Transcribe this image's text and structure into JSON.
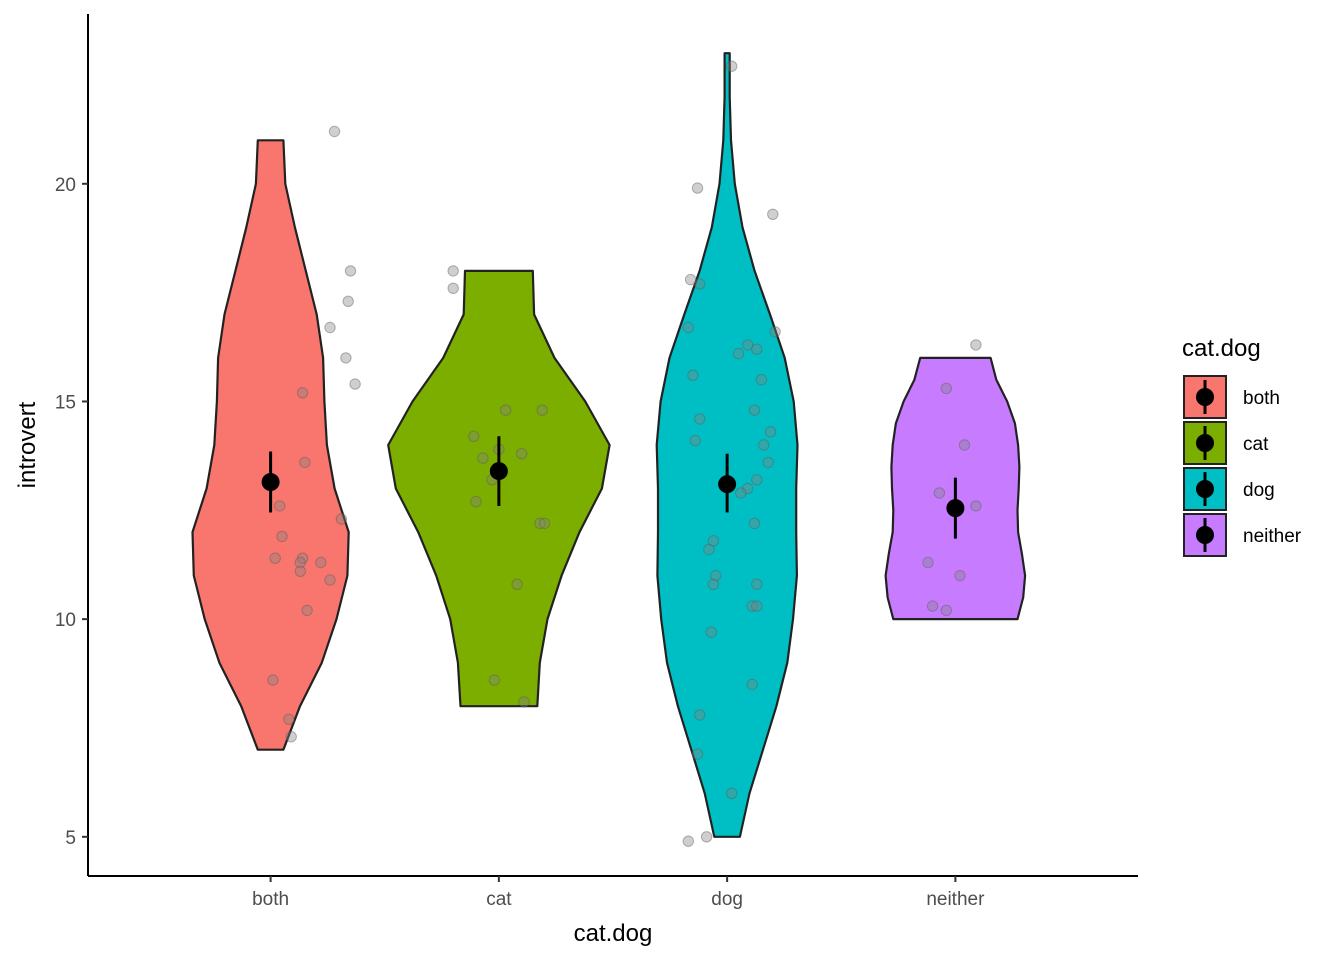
{
  "chart_data": {
    "type": "violin",
    "xlabel": "cat.dog",
    "ylabel": "introvert",
    "categories": [
      "both",
      "cat",
      "dog",
      "neither"
    ],
    "colors": {
      "both": "#F8766D",
      "cat": "#7CAE00",
      "dog": "#00BFC4",
      "neither": "#C77CFF"
    },
    "ylim": [
      4.1,
      23.9
    ],
    "yticks": [
      5,
      10,
      15,
      20
    ],
    "grid": false,
    "legend": {
      "title": "cat.dog",
      "position": "right",
      "items": [
        "both",
        "cat",
        "dog",
        "neither"
      ]
    },
    "summary": [
      {
        "category": "both",
        "mean": 13.15,
        "lower": 12.45,
        "upper": 13.85
      },
      {
        "category": "cat",
        "mean": 13.4,
        "lower": 12.6,
        "upper": 14.2
      },
      {
        "category": "dog",
        "mean": 13.1,
        "lower": 12.45,
        "upper": 13.8
      },
      {
        "category": "neither",
        "mean": 12.55,
        "lower": 11.85,
        "upper": 13.25
      }
    ],
    "violins": [
      {
        "category": "both",
        "ymin": 7,
        "ymax": 21,
        "profile": [
          [
            7,
            0.2
          ],
          [
            8,
            0.46
          ],
          [
            9,
            0.8
          ],
          [
            10,
            1.03
          ],
          [
            11,
            1.2
          ],
          [
            12,
            1.22
          ],
          [
            13,
            1.0
          ],
          [
            14,
            0.88
          ],
          [
            15,
            0.84
          ],
          [
            16,
            0.82
          ],
          [
            17,
            0.72
          ],
          [
            18,
            0.55
          ],
          [
            19,
            0.38
          ],
          [
            20,
            0.23
          ],
          [
            21,
            0.2
          ]
        ]
      },
      {
        "category": "cat",
        "ymin": 8,
        "ymax": 18,
        "profile": [
          [
            8,
            0.6
          ],
          [
            9,
            0.64
          ],
          [
            10,
            0.76
          ],
          [
            11,
            0.98
          ],
          [
            12,
            1.26
          ],
          [
            13,
            1.61
          ],
          [
            14,
            1.73
          ],
          [
            15,
            1.35
          ],
          [
            16,
            0.87
          ],
          [
            17,
            0.55
          ],
          [
            18,
            0.53
          ]
        ]
      },
      {
        "category": "dog",
        "ymin": 5,
        "ymax": 23,
        "profile": [
          [
            5,
            0.2
          ],
          [
            6,
            0.35
          ],
          [
            7,
            0.56
          ],
          [
            8,
            0.77
          ],
          [
            9,
            0.94
          ],
          [
            10,
            1.03
          ],
          [
            11,
            1.09
          ],
          [
            12,
            1.08
          ],
          [
            13,
            1.08
          ],
          [
            14,
            1.1
          ],
          [
            15,
            1.04
          ],
          [
            16,
            0.9
          ],
          [
            17,
            0.67
          ],
          [
            18,
            0.43
          ],
          [
            19,
            0.24
          ],
          [
            20,
            0.12
          ],
          [
            21,
            0.06
          ],
          [
            22,
            0.04
          ],
          [
            23,
            0.04
          ]
        ]
      },
      {
        "category": "neither",
        "ymin": 10,
        "ymax": 16,
        "profile": [
          [
            10,
            0.97
          ],
          [
            10.5,
            1.06
          ],
          [
            11,
            1.09
          ],
          [
            11.5,
            1.04
          ],
          [
            12,
            0.98
          ],
          [
            12.5,
            0.97
          ],
          [
            13,
            0.99
          ],
          [
            13.5,
            1.0
          ],
          [
            14,
            0.98
          ],
          [
            14.5,
            0.93
          ],
          [
            15,
            0.81
          ],
          [
            15.5,
            0.64
          ],
          [
            16,
            0.55
          ]
        ]
      }
    ],
    "points": [
      {
        "category": "both",
        "x": [
          0.28,
          0.35,
          0.34,
          0.26,
          0.33,
          0.37,
          0.14,
          0.15,
          0.0,
          0.04,
          0.31,
          0.05,
          0.14,
          0.13,
          0.13,
          0.26,
          0.16,
          0.01,
          0.08,
          0.09,
          0.22,
          0.02
        ],
        "y": [
          21.2,
          18.0,
          17.3,
          16.7,
          16.0,
          15.4,
          15.2,
          13.6,
          13.2,
          12.6,
          12.3,
          11.9,
          11.4,
          11.3,
          11.1,
          10.9,
          10.2,
          8.6,
          7.7,
          7.3,
          11.3,
          11.4
        ]
      },
      {
        "category": "cat",
        "x": [
          -0.2,
          -0.2,
          0.03,
          -0.11,
          0.0,
          -0.07,
          0.19,
          0.18,
          0.08,
          -0.02,
          0.11,
          0.1,
          0.2,
          -0.03,
          -0.1
        ],
        "y": [
          18.0,
          17.6,
          14.8,
          14.2,
          13.9,
          13.7,
          14.8,
          12.2,
          10.8,
          8.6,
          8.1,
          13.8,
          12.2,
          13.2,
          12.7
        ]
      },
      {
        "category": "dog",
        "x": [
          0.02,
          -0.13,
          0.2,
          -0.12,
          -0.17,
          0.21,
          -0.15,
          0.09,
          0.13,
          -0.12,
          0.12,
          -0.14,
          0.19,
          0.16,
          0.18,
          0.09,
          0.06,
          0.12,
          -0.08,
          -0.06,
          -0.05,
          -0.06,
          0.13,
          0.11,
          0.13,
          -0.07,
          -0.12,
          -0.13,
          0.11,
          -0.09,
          -0.17,
          0.02,
          -0.16,
          0.05,
          0.15,
          0.13
        ],
        "y": [
          22.7,
          19.9,
          19.3,
          17.7,
          16.7,
          16.6,
          15.6,
          16.3,
          16.2,
          14.6,
          14.8,
          14.1,
          14.3,
          14.0,
          13.6,
          13.0,
          12.9,
          12.2,
          11.6,
          11.8,
          11.0,
          10.8,
          10.8,
          10.3,
          10.3,
          9.7,
          7.8,
          6.9,
          8.5,
          5.0,
          4.9,
          6.0,
          17.8,
          16.1,
          15.5,
          13.2
        ]
      },
      {
        "category": "neither",
        "x": [
          0.09,
          -0.04,
          0.04,
          -0.07,
          0.09,
          -0.12,
          0.02,
          -0.1,
          -0.04
        ],
        "y": [
          16.3,
          15.3,
          14.0,
          12.9,
          12.6,
          11.3,
          11.0,
          10.3,
          10.2
        ]
      }
    ]
  }
}
